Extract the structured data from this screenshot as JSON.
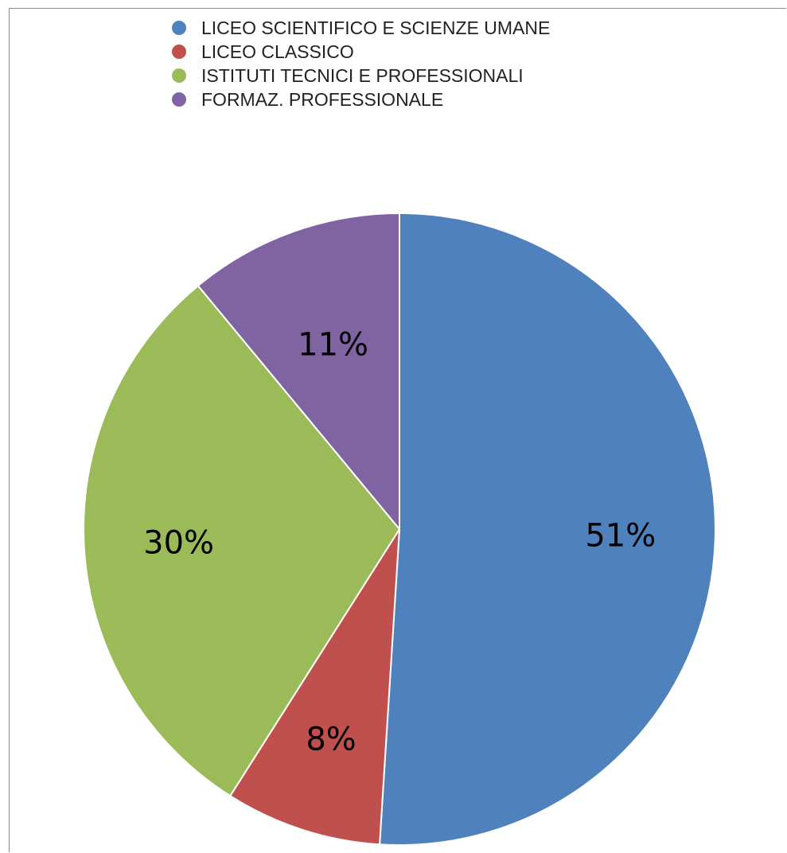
{
  "chart_data": {
    "type": "pie",
    "slices": [
      {
        "name": "LICEO SCIENTIFICO E SCIENZE UMANE",
        "value": 51,
        "label": "51%",
        "color": "#4f81bd"
      },
      {
        "name": "LICEO CLASSICO",
        "value": 8,
        "label": "8%",
        "color": "#c0504d"
      },
      {
        "name": "ISTITUTI TECNICI E PROFESSIONALI",
        "value": 30,
        "label": "30%",
        "color": "#9bbb59"
      },
      {
        "name": "FORMAZ. PROFESSIONALE",
        "value": 11,
        "label": "11%",
        "color": "#8064a2"
      }
    ],
    "start_angle": "12 o'clock",
    "direction": "clockwise",
    "legend_position": "top"
  }
}
